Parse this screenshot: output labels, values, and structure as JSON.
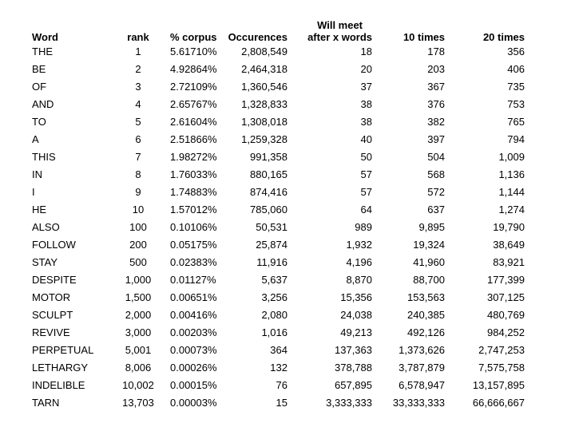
{
  "table": {
    "headers": {
      "word": "Word",
      "rank": "rank",
      "pct_corpus": "% corpus",
      "occurences": "Occurences",
      "will_meet_line1": "Will meet",
      "will_meet_line2": "after x words",
      "ten_times": "10 times",
      "twenty_times": "20 times"
    },
    "rows": [
      [
        "THE",
        "1",
        "5.61710%",
        "2,808,549",
        "18",
        "178",
        "356"
      ],
      [
        "BE",
        "2",
        "4.92864%",
        "2,464,318",
        "20",
        "203",
        "406"
      ],
      [
        "OF",
        "3",
        "2.72109%",
        "1,360,546",
        "37",
        "367",
        "735"
      ],
      [
        "AND",
        "4",
        "2.65767%",
        "1,328,833",
        "38",
        "376",
        "753"
      ],
      [
        "TO",
        "5",
        "2.61604%",
        "1,308,018",
        "38",
        "382",
        "765"
      ],
      [
        "A",
        "6",
        "2.51866%",
        "1,259,328",
        "40",
        "397",
        "794"
      ],
      [
        "THIS",
        "7",
        "1.98272%",
        "991,358",
        "50",
        "504",
        "1,009"
      ],
      [
        "IN",
        "8",
        "1.76033%",
        "880,165",
        "57",
        "568",
        "1,136"
      ],
      [
        "I",
        "9",
        "1.74883%",
        "874,416",
        "57",
        "572",
        "1,144"
      ],
      [
        "HE",
        "10",
        "1.57012%",
        "785,060",
        "64",
        "637",
        "1,274"
      ],
      [
        "ALSO",
        "100",
        "0.10106%",
        "50,531",
        "989",
        "9,895",
        "19,790"
      ],
      [
        "FOLLOW",
        "200",
        "0.05175%",
        "25,874",
        "1,932",
        "19,324",
        "38,649"
      ],
      [
        "STAY",
        "500",
        "0.02383%",
        "11,916",
        "4,196",
        "41,960",
        "83,921"
      ],
      [
        "DESPITE",
        "1,000",
        "0.01127%",
        "5,637",
        "8,870",
        "88,700",
        "177,399"
      ],
      [
        "MOTOR",
        "1,500",
        "0.00651%",
        "3,256",
        "15,356",
        "153,563",
        "307,125"
      ],
      [
        "SCULPT",
        "2,000",
        "0.00416%",
        "2,080",
        "24,038",
        "240,385",
        "480,769"
      ],
      [
        "REVIVE",
        "3,000",
        "0.00203%",
        "1,016",
        "49,213",
        "492,126",
        "984,252"
      ],
      [
        "PERPETUAL",
        "5,001",
        "0.00073%",
        "364",
        "137,363",
        "1,373,626",
        "2,747,253"
      ],
      [
        "LETHARGY",
        "8,006",
        "0.00026%",
        "132",
        "378,788",
        "3,787,879",
        "7,575,758"
      ],
      [
        "INDELIBLE",
        "10,002",
        "0.00015%",
        "76",
        "657,895",
        "6,578,947",
        "13,157,895"
      ],
      [
        "TARN",
        "13,703",
        "0.00003%",
        "15",
        "3,333,333",
        "33,333,333",
        "66,666,667"
      ]
    ]
  }
}
